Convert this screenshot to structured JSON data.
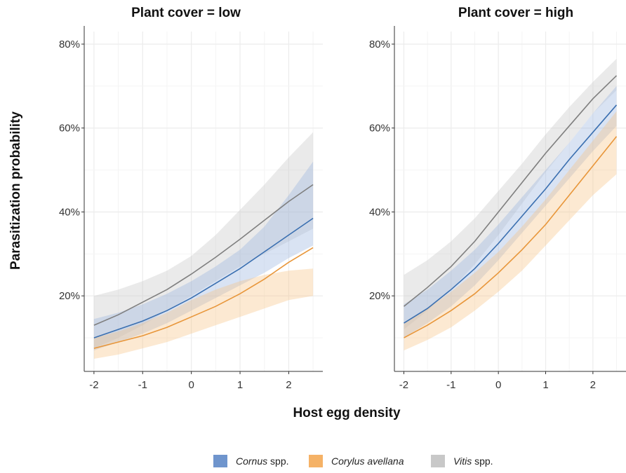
{
  "chart_data": {
    "type": "line",
    "xlabel": "Host egg density",
    "ylabel": "Parasitization probability",
    "x_ticks": [
      "-2",
      "-1",
      "0",
      "1",
      "2"
    ],
    "y_ticks": [
      "20%",
      "40%",
      "60%",
      "80%"
    ],
    "xlim": [
      -2.2,
      2.7
    ],
    "ylim": [
      0.02,
      0.83
    ],
    "grid": true,
    "legend_position": "bottom",
    "x": [
      -2,
      -1.5,
      -1,
      -0.5,
      0,
      0.5,
      1,
      1.5,
      2,
      2.5
    ],
    "legend": [
      {
        "label": "Cornus",
        "suffix": " spp.",
        "color": "#6f95cd",
        "italic_part": "Cornus"
      },
      {
        "label": "Corylus avellana",
        "suffix": "",
        "color": "#f5b266",
        "italic_part": "Corylus avellana"
      },
      {
        "label": "Vitis",
        "suffix": " spp.",
        "color": "#c8c8c8",
        "italic_part": "Vitis"
      }
    ],
    "panels": [
      {
        "title": "Plant cover = low",
        "series": [
          {
            "name": "Vitis spp.",
            "line_color": "#7f7f7f",
            "band_color": "#c8c8c8",
            "values": [
              0.13,
              0.155,
              0.185,
              0.215,
              0.252,
              0.292,
              0.335,
              0.38,
              0.425,
              0.465
            ],
            "lower": [
              0.075,
              0.1,
              0.13,
              0.165,
              0.2,
              0.235,
              0.27,
              0.3,
              0.33,
              0.36
            ],
            "upper": [
              0.2,
              0.215,
              0.235,
              0.26,
              0.295,
              0.345,
              0.405,
              0.465,
              0.53,
              0.59
            ]
          },
          {
            "name": "Cornus spp.",
            "line_color": "#3a6fb0",
            "band_color": "#9bb5e0",
            "values": [
              0.1,
              0.12,
              0.14,
              0.165,
              0.195,
              0.23,
              0.265,
              0.305,
              0.345,
              0.385
            ],
            "lower": [
              0.07,
              0.09,
              0.11,
              0.135,
              0.165,
              0.195,
              0.225,
              0.255,
              0.29,
              0.32
            ],
            "upper": [
              0.145,
              0.16,
              0.18,
              0.205,
              0.235,
              0.27,
              0.31,
              0.365,
              0.44,
              0.52
            ]
          },
          {
            "name": "Corylus avellana",
            "line_color": "#e8963a",
            "band_color": "#f7c48a",
            "values": [
              0.075,
              0.09,
              0.105,
              0.125,
              0.15,
              0.175,
              0.205,
              0.24,
              0.28,
              0.315
            ],
            "lower": [
              0.05,
              0.06,
              0.075,
              0.09,
              0.11,
              0.13,
              0.15,
              0.17,
              0.19,
              0.2
            ],
            "upper": [
              0.1,
              0.115,
              0.135,
              0.16,
              0.19,
              0.215,
              0.235,
              0.25,
              0.26,
              0.265
            ]
          }
        ]
      },
      {
        "title": "Plant cover = high",
        "series": [
          {
            "name": "Vitis spp.",
            "line_color": "#7f7f7f",
            "band_color": "#c8c8c8",
            "values": [
              0.175,
              0.22,
              0.27,
              0.33,
              0.4,
              0.47,
              0.54,
              0.605,
              0.67,
              0.725
            ],
            "lower": [
              0.12,
              0.165,
              0.215,
              0.275,
              0.345,
              0.42,
              0.495,
              0.565,
              0.635,
              0.69
            ],
            "upper": [
              0.25,
              0.285,
              0.33,
              0.385,
              0.45,
              0.515,
              0.585,
              0.65,
              0.71,
              0.765
            ]
          },
          {
            "name": "Cornus spp.",
            "line_color": "#3a6fb0",
            "band_color": "#9bb5e0",
            "values": [
              0.135,
              0.17,
              0.215,
              0.265,
              0.325,
              0.39,
              0.455,
              0.525,
              0.59,
              0.655
            ],
            "lower": [
              0.1,
              0.135,
              0.175,
              0.225,
              0.285,
              0.35,
              0.415,
              0.48,
              0.545,
              0.605
            ],
            "upper": [
              0.18,
              0.215,
              0.26,
              0.31,
              0.37,
              0.435,
              0.5,
              0.565,
              0.635,
              0.7
            ]
          },
          {
            "name": "Corylus avellana",
            "line_color": "#e8963a",
            "band_color": "#f7c48a",
            "values": [
              0.1,
              0.13,
              0.165,
              0.205,
              0.255,
              0.31,
              0.37,
              0.44,
              0.51,
              0.58
            ],
            "lower": [
              0.07,
              0.095,
              0.125,
              0.165,
              0.21,
              0.26,
              0.32,
              0.38,
              0.44,
              0.49
            ],
            "upper": [
              0.135,
              0.17,
              0.21,
              0.255,
              0.305,
              0.365,
              0.43,
              0.5,
              0.57,
              0.64
            ]
          }
        ]
      }
    ]
  }
}
